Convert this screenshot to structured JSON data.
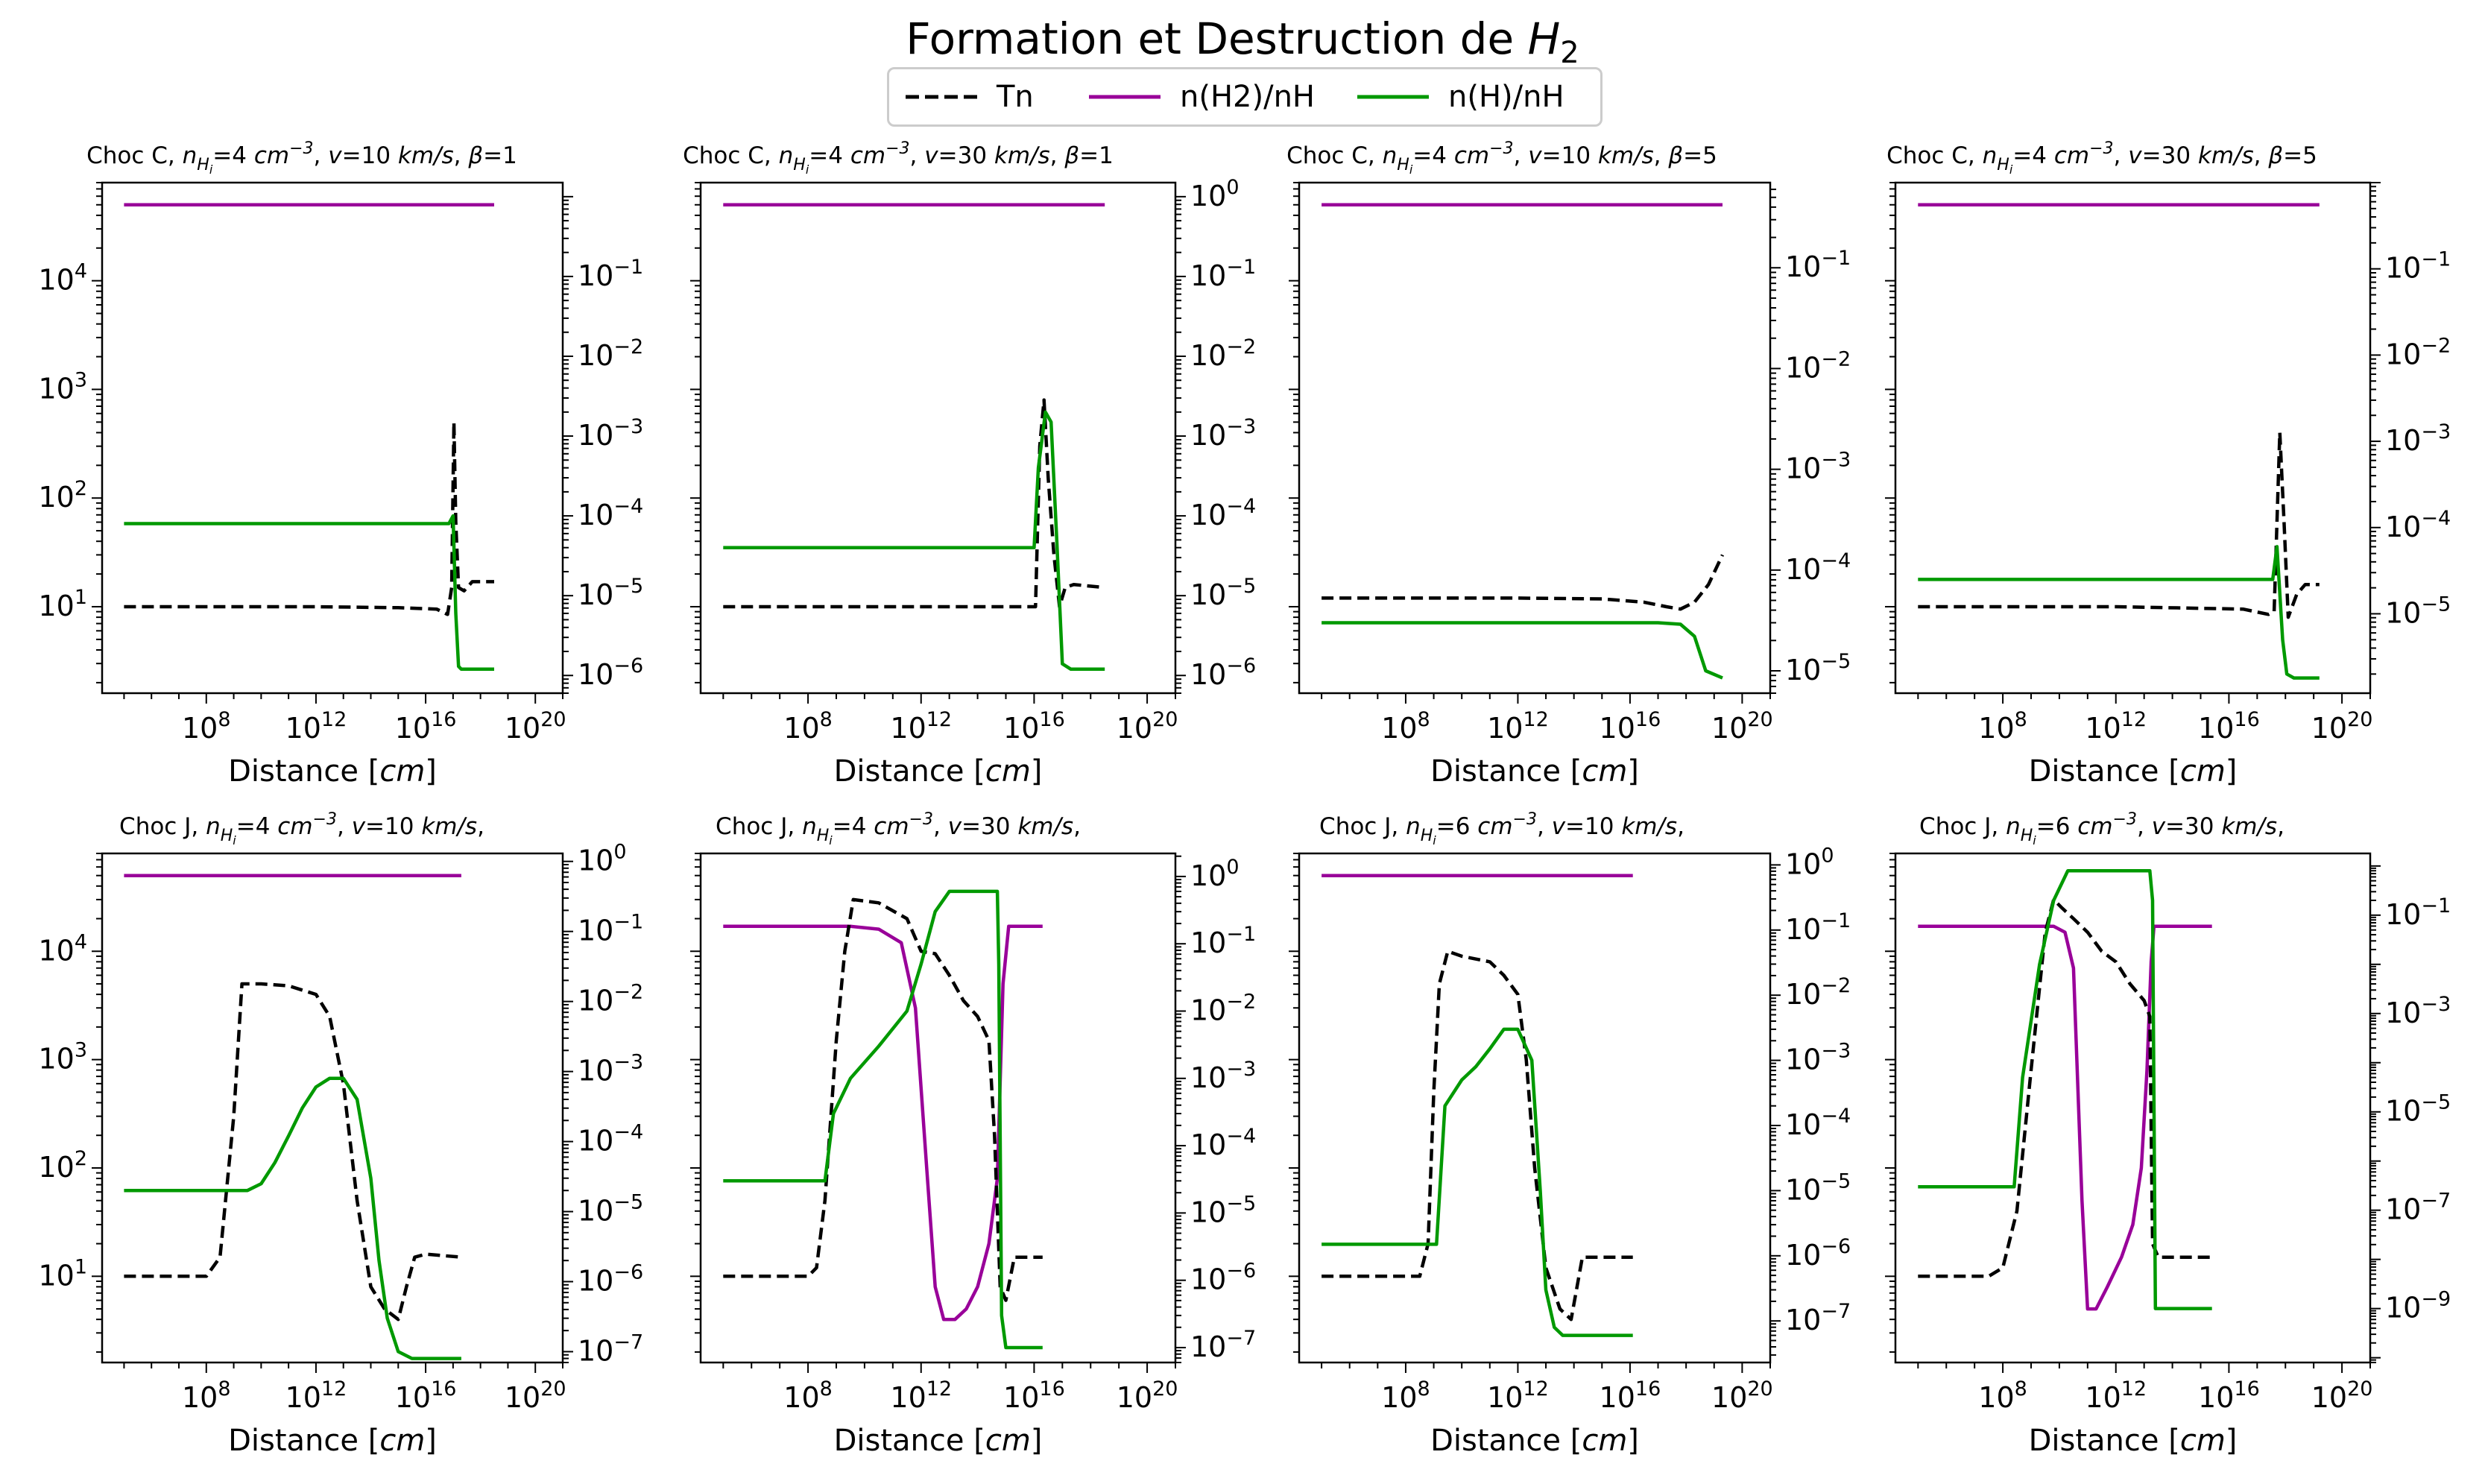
{
  "figure": {
    "title_main": "Formation et Destruction de ",
    "title_var": "H",
    "title_sub": "2"
  },
  "legend": [
    {
      "label": "Tn",
      "color": "#000000",
      "dash": true
    },
    {
      "label": "n(H2)/nH",
      "color": "#990099",
      "dash": false
    },
    {
      "label": "n(H)/nH",
      "color": "#009900",
      "dash": false
    }
  ],
  "colors": {
    "tn": "#000000",
    "h2": "#990099",
    "h": "#009900"
  },
  "chart_data": [
    {
      "type": "line",
      "title": "Choc C, n_Hi=4 cm^-3, v=10 km/s, β=1",
      "title_parts": {
        "shock": "Choc C, ",
        "n": "4",
        "v": "10",
        "beta": "1"
      },
      "xlabel": "Distance [cm]",
      "xscale": "log",
      "xlim_exp": [
        4.2,
        21
      ],
      "xticks": [
        "10^8",
        "10^12",
        "10^16",
        "10^20"
      ],
      "ylim_left": [
        1.6,
        80000
      ],
      "yticks_left": [
        "10^1",
        "10^2",
        "10^3",
        "10^4"
      ],
      "ylim_right": [
        6e-07,
        1.5
      ],
      "yticks_right": [
        "10^-6",
        "10^-5",
        "10^-4",
        "10^-3",
        "10^-2",
        "10^-1"
      ],
      "series": [
        {
          "name": "Tn",
          "axis": "left",
          "dashed": true,
          "color": "#000000",
          "x": [
            5,
            12,
            15,
            16.4,
            16.8,
            16.95,
            17.03,
            17.1,
            17.2,
            17.4,
            17.7,
            18.5
          ],
          "y": [
            10,
            10,
            9.8,
            9.5,
            8.5,
            15,
            500,
            60,
            15,
            14,
            17,
            17
          ]
        },
        {
          "name": "n(H2)/nH",
          "axis": "left",
          "dashed": false,
          "color": "#990099",
          "x": [
            5,
            18.5
          ],
          "y": [
            50000,
            50000
          ]
        },
        {
          "name": "n(H)/nH",
          "axis": "right",
          "dashed": false,
          "color": "#009900",
          "x": [
            5,
            16.85,
            17.0,
            17.1,
            17.2,
            17.3,
            17.5,
            18.5
          ],
          "y": [
            8e-05,
            8e-05,
            0.0001,
            6e-06,
            1.3e-06,
            1.2e-06,
            1.2e-06,
            1.2e-06
          ]
        }
      ]
    },
    {
      "type": "line",
      "title": "Choc C, n_Hi=4 cm^-3, v=30 km/s, β=1",
      "title_parts": {
        "shock": "Choc C, ",
        "n": "4",
        "v": "30",
        "beta": "1"
      },
      "xlabel": "Distance [cm]",
      "xscale": "log",
      "xlim_exp": [
        4.2,
        21
      ],
      "xticks": [
        "10^8",
        "10^12",
        "10^16",
        "10^20"
      ],
      "ylim_left": [
        1.6,
        80000
      ],
      "yticks_left": [],
      "ylim_right": [
        6e-07,
        1.5
      ],
      "yticks_right": [
        "10^-6",
        "10^-5",
        "10^-4",
        "10^-3",
        "10^-2",
        "10^-1",
        "10^0"
      ],
      "series": [
        {
          "name": "Tn",
          "axis": "left",
          "dashed": true,
          "color": "#000000",
          "x": [
            5,
            15.9,
            16.05,
            16.2,
            16.35,
            16.5,
            16.7,
            16.9,
            17.1,
            17.4,
            18.5
          ],
          "y": [
            10,
            10,
            10,
            300,
            800,
            150,
            30,
            10,
            15,
            16,
            15
          ]
        },
        {
          "name": "n(H2)/nH",
          "axis": "left",
          "dashed": false,
          "color": "#990099",
          "x": [
            5,
            18.5
          ],
          "y": [
            50000,
            50000
          ]
        },
        {
          "name": "n(H)/nH",
          "axis": "right",
          "dashed": false,
          "color": "#009900",
          "x": [
            5,
            16.0,
            16.15,
            16.4,
            16.6,
            16.8,
            17.0,
            17.3,
            18.5
          ],
          "y": [
            4e-05,
            4e-05,
            0.0004,
            0.002,
            0.0015,
            5e-05,
            1.4e-06,
            1.2e-06,
            1.2e-06
          ]
        }
      ]
    },
    {
      "type": "line",
      "title": "Choc C, n_Hi=4 cm^-3, v=10 km/s, β=5",
      "title_parts": {
        "shock": "Choc C, ",
        "n": "4",
        "v": "10",
        "beta": "5"
      },
      "xlabel": "Distance [cm]",
      "xscale": "log",
      "xlim_exp": [
        4.2,
        21
      ],
      "xticks": [
        "10^8",
        "10^12",
        "10^16",
        "10^20"
      ],
      "ylim_left": [
        1.6,
        80000
      ],
      "yticks_left": [],
      "ylim_right": [
        6e-06,
        0.7
      ],
      "yticks_right": [
        "10^-5",
        "10^-4",
        "10^-3",
        "10^-2",
        "10^-1"
      ],
      "series": [
        {
          "name": "Tn",
          "axis": "left",
          "dashed": true,
          "color": "#000000",
          "x": [
            5,
            12,
            15,
            16.5,
            17.3,
            17.8,
            18.3,
            18.8,
            19.3
          ],
          "y": [
            12,
            12,
            11.8,
            11,
            10,
            9.5,
            11,
            16,
            30
          ]
        },
        {
          "name": "n(H2)/nH",
          "axis": "left",
          "dashed": false,
          "color": "#990099",
          "x": [
            5,
            19.3
          ],
          "y": [
            50000,
            50000
          ]
        },
        {
          "name": "n(H)/nH",
          "axis": "right",
          "dashed": false,
          "color": "#009900",
          "x": [
            5,
            17,
            17.8,
            18.3,
            18.7,
            19.3
          ],
          "y": [
            3e-05,
            3e-05,
            2.9e-05,
            2.2e-05,
            1e-05,
            8.5e-06
          ]
        }
      ]
    },
    {
      "type": "line",
      "title": "Choc C, n_Hi=4 cm^-3, v=30 km/s, β=5",
      "title_parts": {
        "shock": "Choc C, ",
        "n": "4",
        "v": "30",
        "beta": "5"
      },
      "xlabel": "Distance [cm]",
      "xscale": "log",
      "xlim_exp": [
        4.2,
        21
      ],
      "xticks": [
        "10^8",
        "10^12",
        "10^16",
        "10^20"
      ],
      "ylim_left": [
        1.6,
        80000
      ],
      "yticks_left": [],
      "ylim_right": [
        1.2e-06,
        1.0
      ],
      "yticks_right": [
        "10^-5",
        "10^-4",
        "10^-3",
        "10^-2",
        "10^-1"
      ],
      "series": [
        {
          "name": "Tn",
          "axis": "left",
          "dashed": true,
          "color": "#000000",
          "x": [
            5,
            12,
            16.5,
            17.4,
            17.6,
            17.7,
            17.8,
            17.95,
            18.1,
            18.4,
            18.7,
            19.2
          ],
          "y": [
            10,
            10,
            9.5,
            8.5,
            9,
            60,
            400,
            60,
            8,
            13,
            16,
            16
          ]
        },
        {
          "name": "n(H2)/nH",
          "axis": "left",
          "dashed": false,
          "color": "#990099",
          "x": [
            5,
            19.2
          ],
          "y": [
            50000,
            50000
          ]
        },
        {
          "name": "n(H)/nH",
          "axis": "right",
          "dashed": false,
          "color": "#009900",
          "x": [
            5,
            17.55,
            17.7,
            17.9,
            18.05,
            18.3,
            19.2
          ],
          "y": [
            2.5e-05,
            2.5e-05,
            6e-05,
            5e-06,
            2e-06,
            1.8e-06,
            1.8e-06
          ]
        }
      ]
    },
    {
      "type": "line",
      "title": "Choc J, n_Hi=4 cm^-3, v=10 km/s,",
      "title_parts": {
        "shock": "Choc J, ",
        "n": "4",
        "v": "10",
        "beta": ""
      },
      "xlabel": "Distance [cm]",
      "xscale": "log",
      "xlim_exp": [
        4.2,
        21
      ],
      "xticks": [
        "10^8",
        "10^12",
        "10^16",
        "10^20"
      ],
      "ylim_left": [
        1.6,
        80000
      ],
      "yticks_left": [
        "10^1",
        "10^2",
        "10^3",
        "10^4"
      ],
      "ylim_right": [
        7e-08,
        1.3
      ],
      "yticks_right": [
        "10^-7",
        "10^-6",
        "10^-5",
        "10^-4",
        "10^-3",
        "10^-2",
        "10^-1",
        "10^0"
      ],
      "series": [
        {
          "name": "Tn",
          "axis": "left",
          "dashed": true,
          "color": "#000000",
          "x": [
            5,
            8.0,
            8.5,
            9.0,
            9.3,
            10.0,
            11.0,
            12.0,
            12.5,
            13.0,
            13.5,
            14.0,
            14.5,
            15.0,
            15.3,
            15.6,
            16.0,
            17.3
          ],
          "y": [
            10,
            10,
            15,
            300,
            5000,
            5000,
            4800,
            4000,
            2500,
            600,
            50,
            8,
            5,
            4,
            8,
            15,
            16,
            15
          ]
        },
        {
          "name": "n(H2)/nH",
          "axis": "left",
          "dashed": false,
          "color": "#990099",
          "x": [
            5,
            17.3
          ],
          "y": [
            50000,
            50000
          ]
        },
        {
          "name": "n(H)/nH",
          "axis": "right",
          "dashed": false,
          "color": "#009900",
          "x": [
            5,
            9.5,
            10.0,
            10.5,
            11.0,
            11.5,
            12.0,
            12.5,
            13.0,
            13.5,
            14.0,
            14.3,
            14.6,
            15.0,
            15.5,
            16.0,
            17.3
          ],
          "y": [
            2e-05,
            2e-05,
            2.5e-05,
            5e-05,
            0.00012,
            0.0003,
            0.0006,
            0.0008,
            0.0008,
            0.0004,
            3e-05,
            2e-06,
            3e-07,
            1e-07,
            8e-08,
            8e-08,
            8e-08
          ]
        }
      ]
    },
    {
      "type": "line",
      "title": "Choc J, n_Hi=4 cm^-3, v=30 km/s,",
      "title_parts": {
        "shock": "Choc J, ",
        "n": "4",
        "v": "30",
        "beta": ""
      },
      "xlabel": "Distance [cm]",
      "xscale": "log",
      "xlim_exp": [
        4.2,
        21
      ],
      "xticks": [
        "10^8",
        "10^12",
        "10^16",
        "10^20"
      ],
      "ylim_left": [
        1.6,
        80000
      ],
      "yticks_left": [],
      "ylim_right": [
        6e-08,
        2.2
      ],
      "yticks_right": [
        "10^-7",
        "10^-6",
        "10^-5",
        "10^-4",
        "10^-3",
        "10^-2",
        "10^-1",
        "10^0"
      ],
      "series": [
        {
          "name": "Tn",
          "axis": "left",
          "dashed": true,
          "color": "#000000",
          "x": [
            5,
            8.0,
            8.3,
            8.6,
            9.0,
            9.3,
            9.6,
            10.5,
            11.5,
            12.0,
            12.5,
            13.0,
            13.5,
            14.0,
            14.4,
            14.6,
            14.8,
            15.0,
            15.3,
            16.3
          ],
          "y": [
            10,
            10,
            12,
            50,
            1500,
            10000,
            30000,
            28000,
            20000,
            10000,
            9500,
            6000,
            3500,
            2500,
            1500,
            200,
            8,
            6,
            15,
            15
          ]
        },
        {
          "name": "n(H2)/nH",
          "axis": "left",
          "dashed": false,
          "color": "#990099",
          "x": [
            5,
            9.5,
            10.5,
            11.3,
            11.8,
            12.2,
            12.5,
            12.8,
            13.2,
            13.6,
            14.0,
            14.4,
            14.7,
            14.9,
            15.1,
            16.3
          ],
          "y": [
            17000,
            17000,
            16000,
            12000,
            3000,
            100,
            8,
            4,
            4,
            5,
            8,
            20,
            80,
            5000,
            17000,
            17000
          ]
        },
        {
          "name": "n(H)/nH",
          "axis": "right",
          "dashed": false,
          "color": "#009900",
          "x": [
            5,
            8.6,
            8.9,
            9.5,
            10.5,
            11.5,
            12.0,
            12.5,
            13.0,
            14.0,
            14.7,
            14.75,
            14.85,
            15.0,
            16.3
          ],
          "y": [
            3e-05,
            3e-05,
            0.0003,
            0.001,
            0.003,
            0.01,
            0.05,
            0.3,
            0.6,
            0.6,
            0.6,
            0.05,
            3e-07,
            1e-07,
            1e-07
          ]
        }
      ]
    },
    {
      "type": "line",
      "title": "Choc J, n_Hi=6 cm^-3, v=10 km/s,",
      "title_parts": {
        "shock": "Choc J, ",
        "n": "6",
        "v": "10",
        "beta": ""
      },
      "xlabel": "Distance [cm]",
      "xscale": "log",
      "xlim_exp": [
        4.2,
        21
      ],
      "xticks": [
        "10^8",
        "10^12",
        "10^16",
        "10^20"
      ],
      "ylim_left": [
        1.6,
        80000
      ],
      "yticks_left": [],
      "ylim_right": [
        2.3e-08,
        1.5
      ],
      "yticks_right": [
        "10^-7",
        "10^-6",
        "10^-5",
        "10^-4",
        "10^-3",
        "10^-2",
        "10^-1",
        "10^0"
      ],
      "series": [
        {
          "name": "Tn",
          "axis": "left",
          "dashed": true,
          "color": "#000000",
          "x": [
            5,
            8.5,
            8.8,
            9.0,
            9.2,
            9.5,
            10.0,
            11.0,
            11.5,
            12.0,
            12.3,
            12.6,
            13.0,
            13.5,
            13.9,
            14.3,
            16.1
          ],
          "y": [
            10,
            10,
            20,
            500,
            5000,
            10000,
            9000,
            8000,
            6000,
            4000,
            1000,
            100,
            12,
            5,
            4,
            15,
            15
          ]
        },
        {
          "name": "n(H2)/nH",
          "axis": "left",
          "dashed": false,
          "color": "#990099",
          "x": [
            5,
            16.1
          ],
          "y": [
            50000,
            50000
          ]
        },
        {
          "name": "n(H)/nH",
          "axis": "right",
          "dashed": false,
          "color": "#009900",
          "x": [
            5,
            9.1,
            9.4,
            10.0,
            10.5,
            11.0,
            11.5,
            12.0,
            12.5,
            12.8,
            13.0,
            13.3,
            13.6,
            14.0,
            16.1
          ],
          "y": [
            1.5e-06,
            1.5e-06,
            0.0002,
            0.0005,
            0.0008,
            0.0015,
            0.003,
            0.003,
            0.001,
            1e-05,
            3e-07,
            8e-08,
            6e-08,
            6e-08,
            6e-08
          ]
        }
      ]
    },
    {
      "type": "line",
      "title": "Choc J, n_Hi=6 cm^-3, v=30 km/s,",
      "title_parts": {
        "shock": "Choc J, ",
        "n": "6",
        "v": "30",
        "beta": ""
      },
      "xlabel": "Distance [cm]",
      "xscale": "log",
      "xlim_exp": [
        4.2,
        21
      ],
      "xticks": [
        "10^8",
        "10^12",
        "10^16",
        "10^20"
      ],
      "ylim_left": [
        1.6,
        80000
      ],
      "yticks_left": [],
      "ylim_right": [
        8e-11,
        1.8
      ],
      "yticks_right": [
        "10^-9",
        "10^-7",
        "10^-5",
        "10^-3",
        "10^-1"
      ],
      "series": [
        {
          "name": "Tn",
          "axis": "left",
          "dashed": true,
          "color": "#000000",
          "x": [
            5,
            7.5,
            8.0,
            8.5,
            9.0,
            9.5,
            9.8,
            10.1,
            10.5,
            11.0,
            11.5,
            12.0,
            12.5,
            13.0,
            13.2,
            13.3,
            13.5,
            15.4
          ],
          "y": [
            10,
            10,
            12,
            40,
            800,
            15000,
            30000,
            25000,
            20000,
            15000,
            10000,
            8000,
            5000,
            3500,
            2500,
            20,
            15,
            15
          ]
        },
        {
          "name": "n(H2)/nH",
          "axis": "left",
          "dashed": false,
          "color": "#990099",
          "x": [
            5,
            9.8,
            10.2,
            10.5,
            10.8,
            11.0,
            11.3,
            11.7,
            12.2,
            12.6,
            12.9,
            13.1,
            13.25,
            13.35,
            15.4
          ],
          "y": [
            17000,
            17000,
            15000,
            7000,
            50,
            5,
            5,
            8,
            15,
            30,
            100,
            800,
            8000,
            17000,
            17000
          ]
        },
        {
          "name": "n(H)/nH",
          "axis": "right",
          "dashed": false,
          "color": "#009900",
          "x": [
            5,
            8.4,
            8.7,
            9.3,
            9.8,
            10.3,
            11.0,
            12.0,
            13.2,
            13.3,
            13.4,
            15.4
          ],
          "y": [
            3e-07,
            3e-07,
            5e-05,
            0.01,
            0.2,
            0.8,
            0.8,
            0.8,
            0.8,
            0.2,
            1e-09,
            1e-09
          ]
        }
      ]
    }
  ]
}
